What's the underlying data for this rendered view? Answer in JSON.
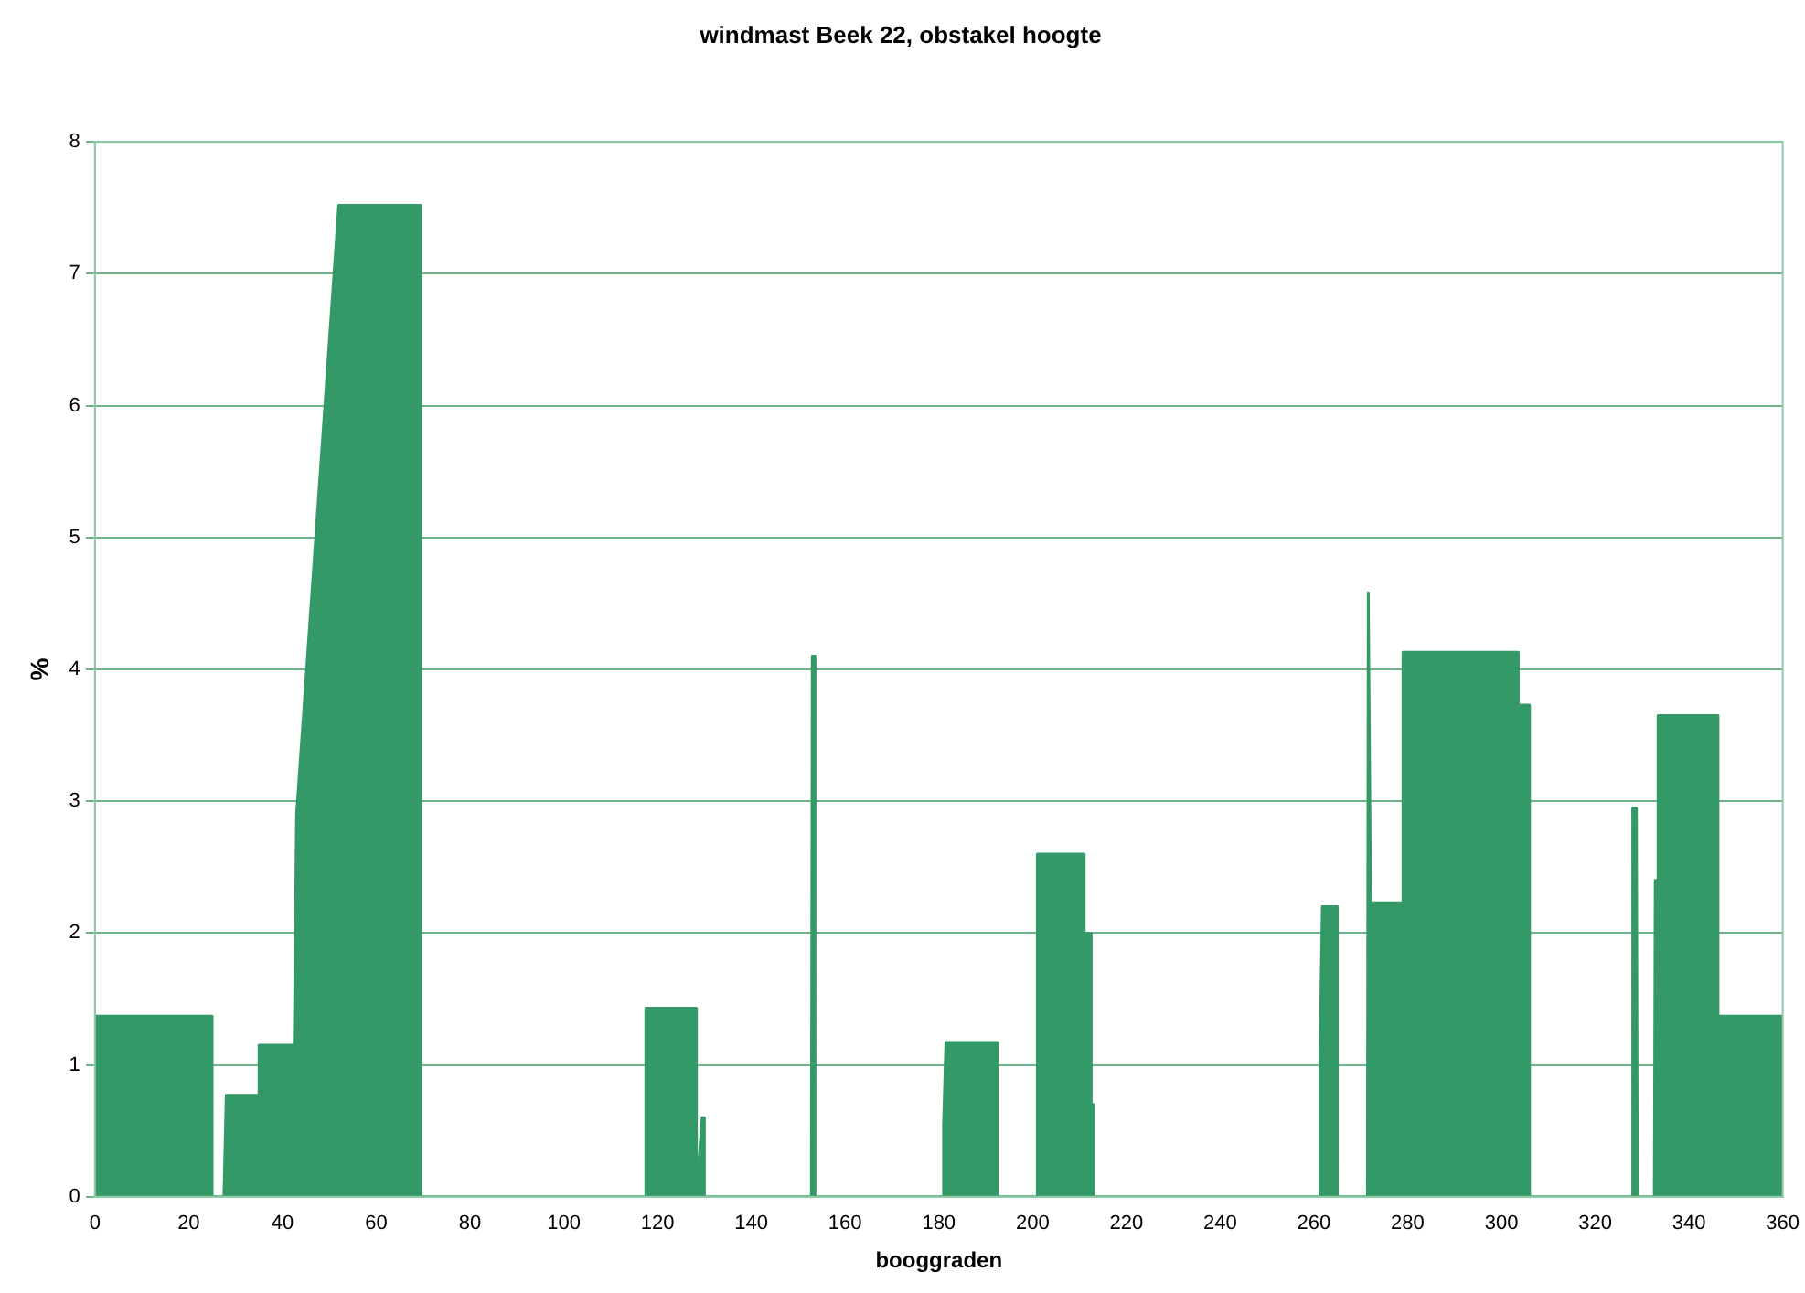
{
  "chart_data": {
    "type": "area",
    "title": "windmast Beek 22, obstakel hoogte",
    "xlabel": "booggraden",
    "ylabel": "%",
    "x": [
      0,
      25,
      25,
      27.5,
      28,
      35,
      35,
      42,
      42.5,
      43,
      52,
      69.5,
      69.5,
      117.5,
      117.5,
      128.3,
      128.3,
      129.5,
      130,
      130,
      152.8,
      153,
      153.4,
      153.6,
      181,
      181,
      181.5,
      192.5,
      192.5,
      201,
      201,
      211,
      211,
      212.3,
      212.5,
      213,
      213,
      261,
      261.3,
      261.8,
      265,
      265,
      271.4,
      271.6,
      271.9,
      272.1,
      279,
      279,
      303.6,
      303.6,
      306,
      306,
      327.8,
      328,
      328.8,
      329,
      332.6,
      332.8,
      333.2,
      333.4,
      346.2,
      346.2,
      360
    ],
    "values": [
      1.37,
      1.37,
      0,
      0,
      0.77,
      0.77,
      1.15,
      1.15,
      1.15,
      2.9,
      7.52,
      7.52,
      0,
      0,
      1.43,
      1.43,
      0,
      0.6,
      0.6,
      0,
      0,
      4.1,
      4.1,
      0,
      0,
      0.55,
      1.17,
      1.17,
      0,
      0,
      2.6,
      2.6,
      2.0,
      2.0,
      0.7,
      0.7,
      0,
      0,
      1.1,
      2.2,
      2.2,
      0,
      0,
      4.58,
      4.58,
      2.23,
      2.23,
      4.13,
      4.13,
      3.73,
      3.73,
      0,
      0,
      2.95,
      2.95,
      0,
      0,
      2.4,
      2.4,
      3.65,
      3.65,
      1.37,
      1.37
    ],
    "color": "#339966",
    "xlim": [
      0,
      360
    ],
    "xticks": [
      0,
      20,
      40,
      60,
      80,
      100,
      120,
      140,
      160,
      180,
      200,
      220,
      240,
      260,
      280,
      300,
      320,
      340,
      360
    ],
    "ylim": [
      0,
      8
    ],
    "yticks": [
      0,
      1,
      2,
      3,
      4,
      5,
      6,
      7,
      8
    ],
    "grid": "y",
    "legend": false,
    "marker": "none"
  }
}
